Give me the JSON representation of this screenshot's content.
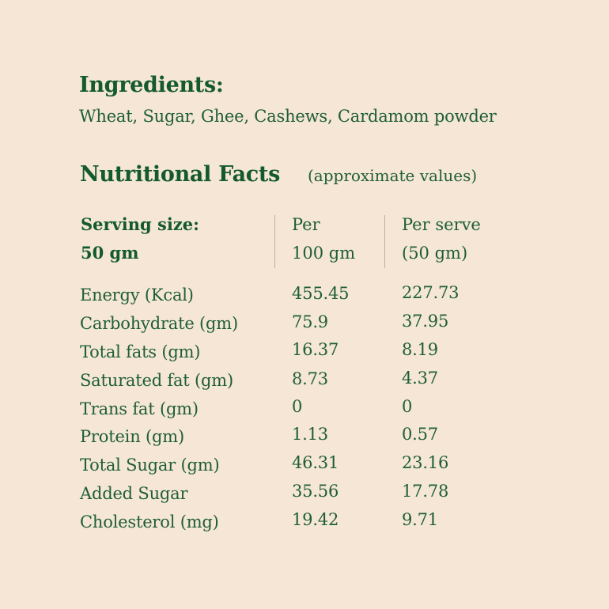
{
  "ingredients": {
    "heading": "Ingredients:",
    "list": "Wheat, Sugar, Ghee, Cashews, Cardamom powder"
  },
  "nutrition": {
    "heading": "Nutritional Facts",
    "note": "(approximate values)",
    "serving_label": "Serving size:",
    "serving_value": "50 gm",
    "col_per100_line1": "Per",
    "col_per100_line2": "100 gm",
    "col_serve_line1": "Per serve",
    "col_serve_line2": "(50 gm)",
    "rows": [
      {
        "label": "Energy (Kcal)",
        "per100": "455.45",
        "per_serve": "227.73"
      },
      {
        "label": "Carbohydrate (gm)",
        "per100": "75.9",
        "per_serve": "37.95"
      },
      {
        "label": "Total fats (gm)",
        "per100": "16.37",
        "per_serve": "8.19"
      },
      {
        "label": "Saturated fat (gm)",
        "per100": "8.73",
        "per_serve": "4.37"
      },
      {
        "label": "Trans fat (gm)",
        "per100": "0",
        "per_serve": "0"
      },
      {
        "label": "Protein (gm)",
        "per100": "1.13",
        "per_serve": "0.57"
      },
      {
        "label": "Total Sugar (gm)",
        "per100": "46.31",
        "per_serve": "23.16"
      },
      {
        "label": "Added Sugar",
        "per100": "35.56",
        "per_serve": "17.78"
      },
      {
        "label": "Cholesterol (mg)",
        "per100": "19.42",
        "per_serve": "9.71"
      }
    ]
  },
  "colors": {
    "background": "#f5e6d6",
    "text": "#1f5e36",
    "heading": "#145a2c"
  }
}
